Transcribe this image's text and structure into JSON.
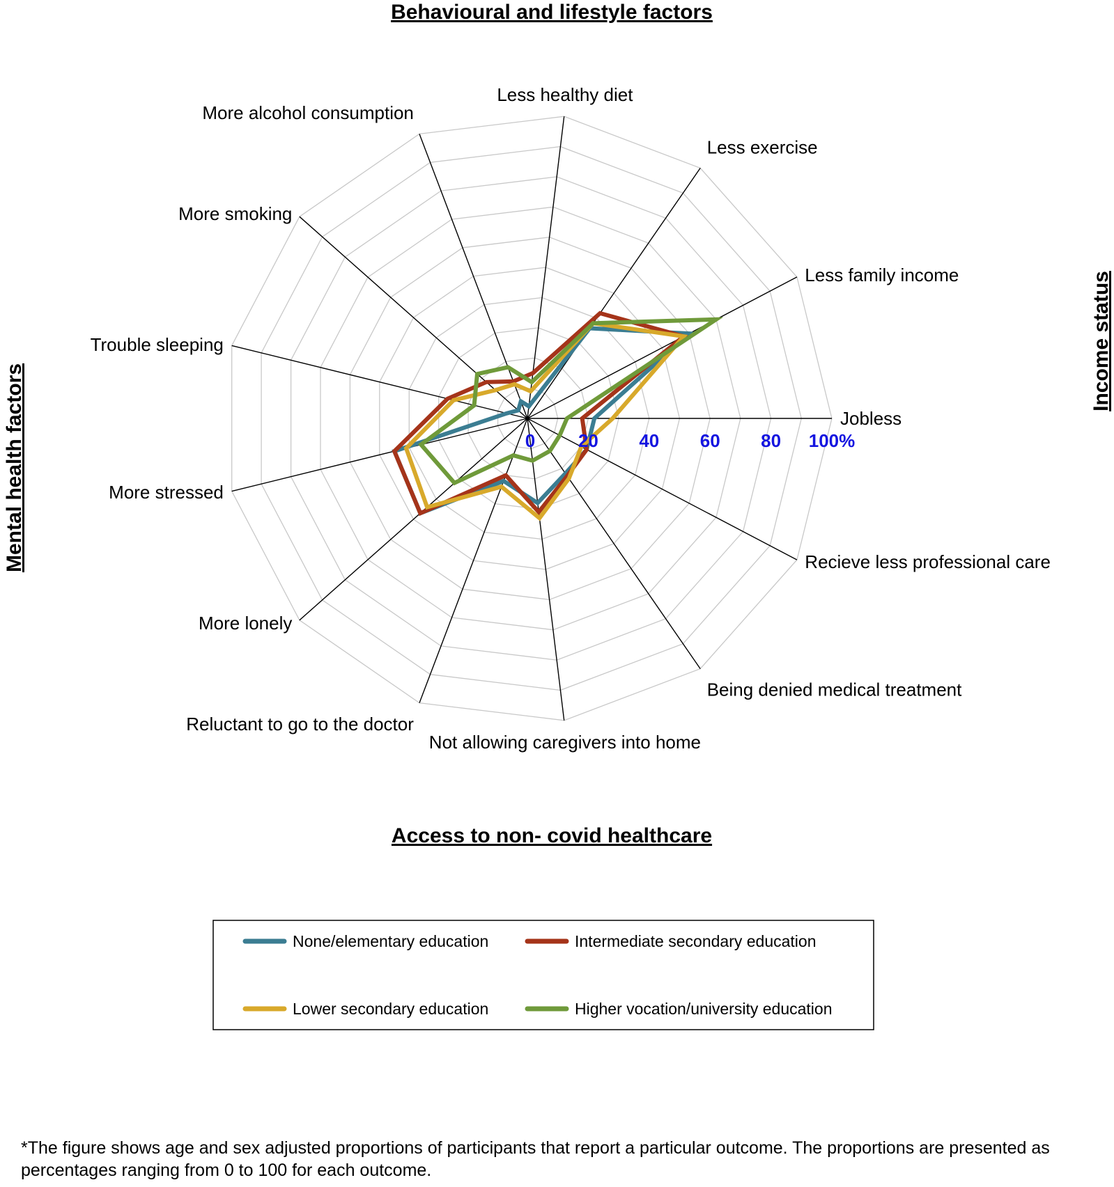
{
  "titles": {
    "top": "Behavioural and lifestyle factors",
    "bottom": "Access to non- covid healthcare",
    "left": "Mental health factors",
    "right": "Income status"
  },
  "footnote": "*The figure shows age and sex adjusted proportions of participants that report a particular outcome. The proportions are presented as percentages ranging from 0 to 100 for each outcome.",
  "chart_data": {
    "type": "radar",
    "title": "",
    "rmax": 100,
    "grid": true,
    "legend_position": "bottom",
    "categories": [
      "Jobless",
      "Less family income",
      "Less exercise",
      "Less healthy diet",
      "More alcohol consumption",
      "More smoking",
      "Trouble sleeping",
      "More stressed",
      "More lonely",
      "Reluctant to go to the doctor",
      "Not allowing caregivers into home",
      "Being denied medical treatment",
      "Recieve less professional care"
    ],
    "tick_labels": [
      "0",
      "20",
      "40",
      "60",
      "80",
      "100%"
    ],
    "series": [
      {
        "name": "None/elementary education",
        "color": "#3b7d92",
        "values": [
          22,
          60,
          36,
          4,
          6,
          4,
          7,
          45,
          47,
          22,
          28,
          22,
          22
        ]
      },
      {
        "name": "Intermediate secondary education",
        "color": "#a5341a",
        "values": [
          18,
          58,
          42,
          15,
          13,
          18,
          27,
          45,
          47,
          20,
          31,
          23,
          22
        ]
      },
      {
        "name": "Lower secondary education",
        "color": "#d8a92b",
        "values": [
          28,
          58,
          38,
          9,
          12,
          14,
          25,
          41,
          44,
          24,
          33,
          24,
          20
        ]
      },
      {
        "name": "Higher vocation/university education",
        "color": "#6f9a3a",
        "values": [
          13,
          70,
          38,
          12,
          18,
          22,
          18,
          36,
          32,
          13,
          14,
          13,
          12
        ]
      }
    ]
  }
}
